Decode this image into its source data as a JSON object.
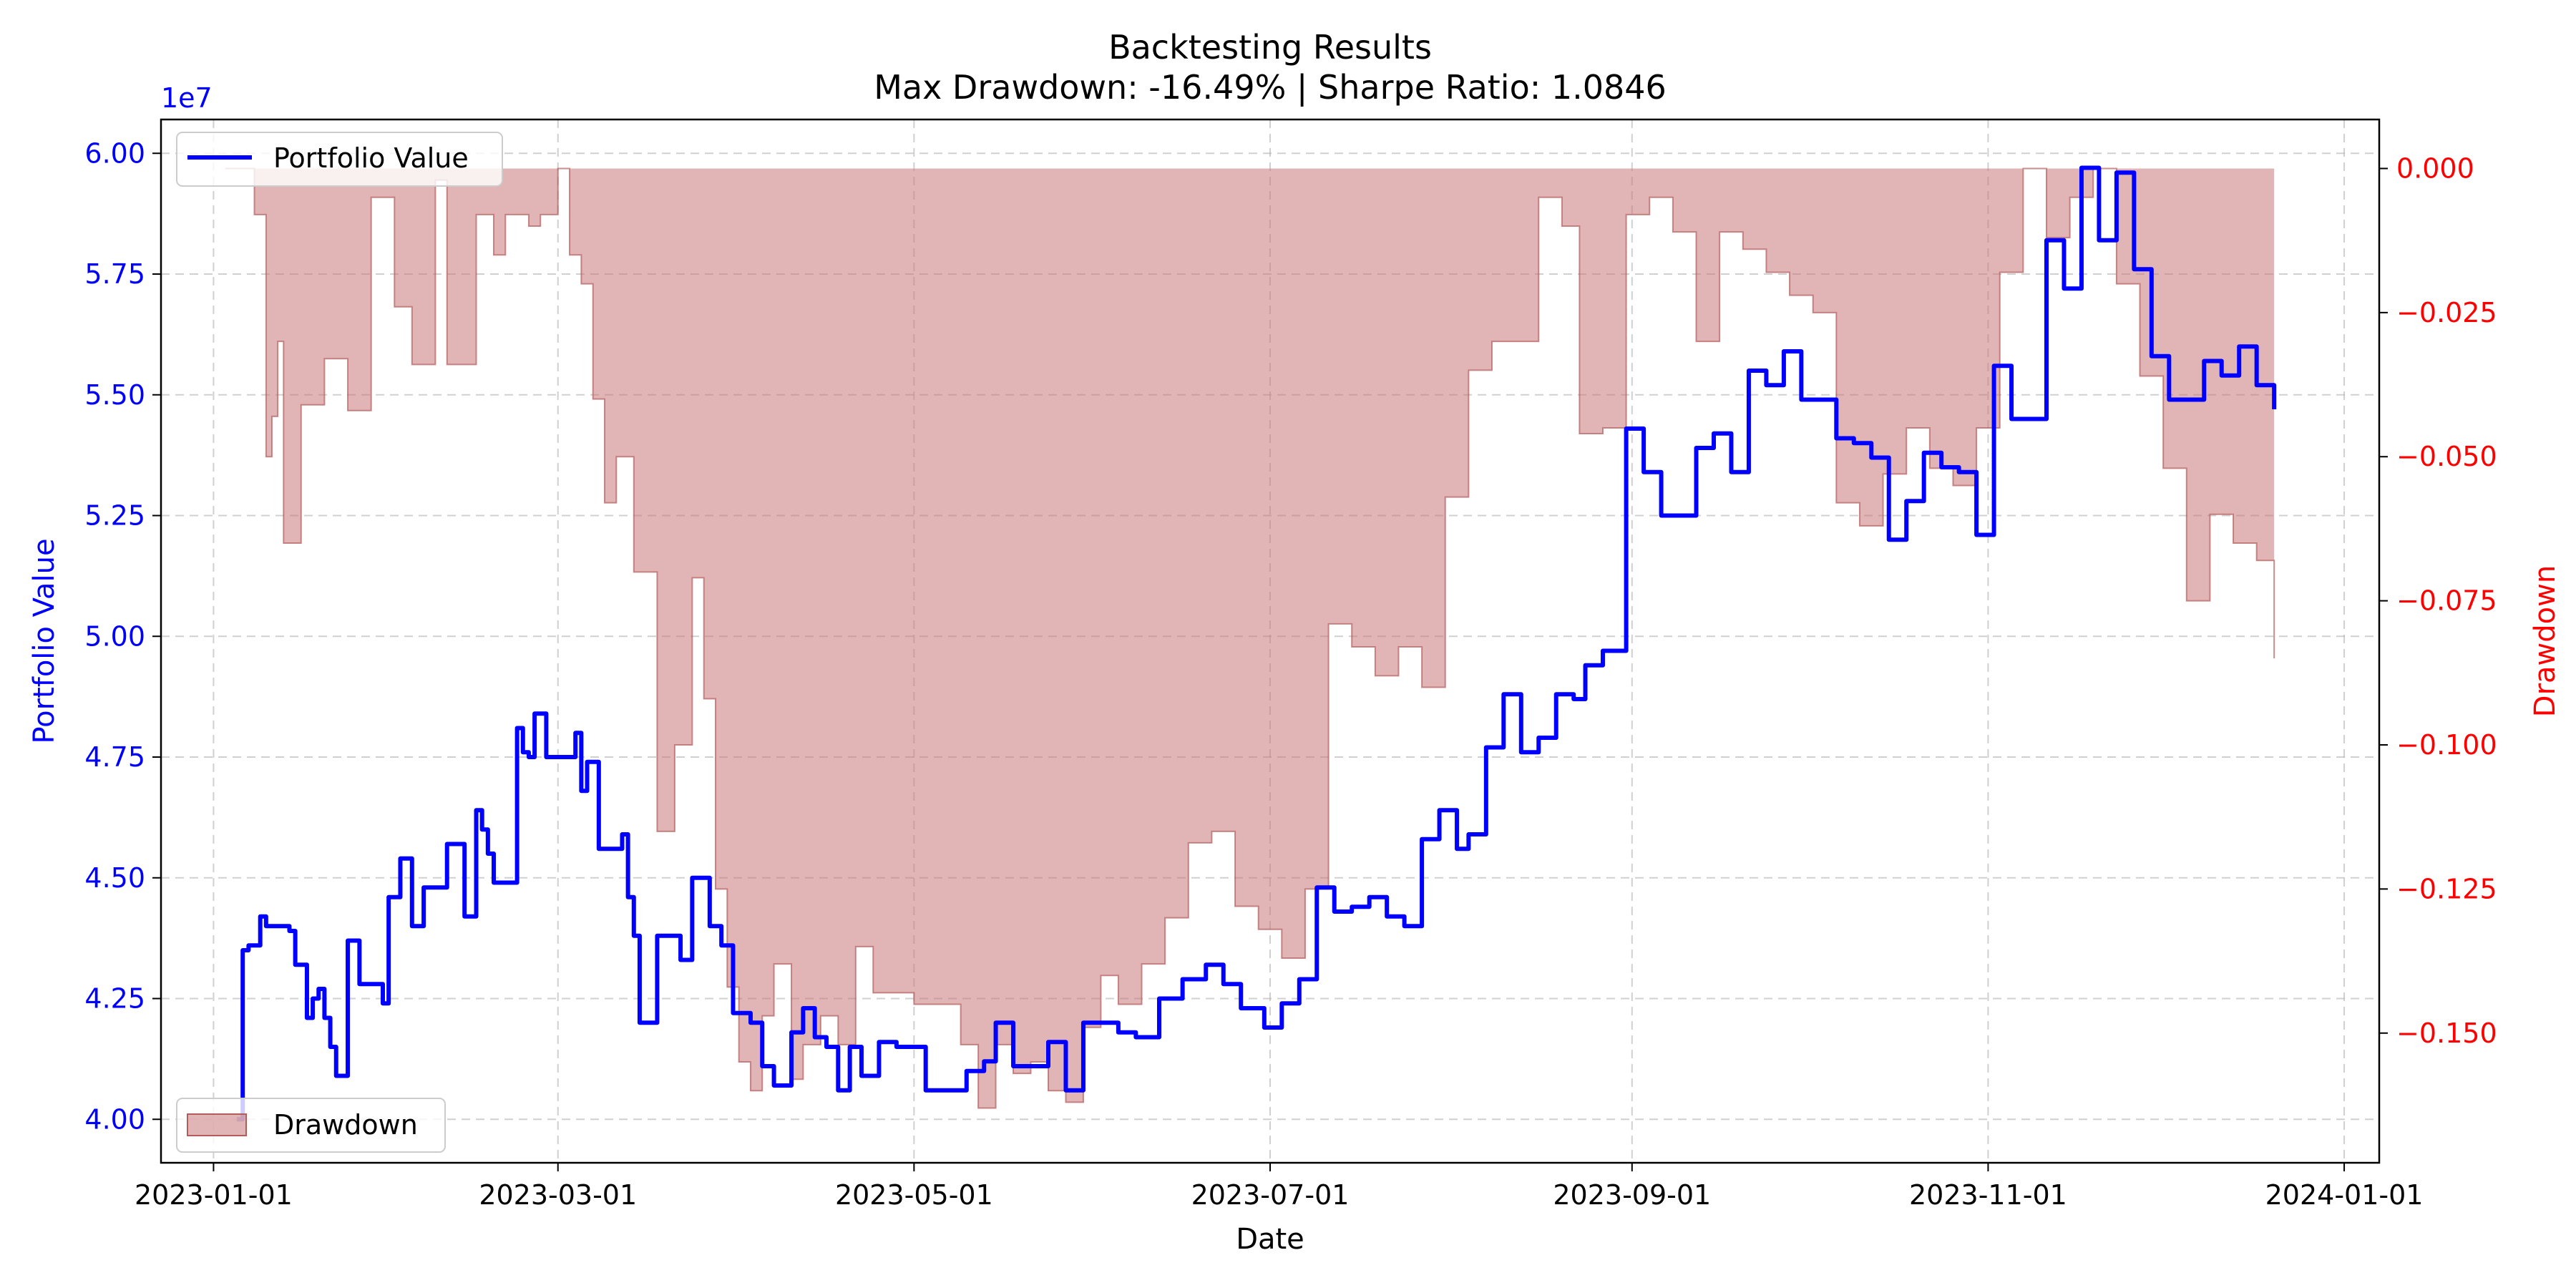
{
  "chart_data": {
    "type": "line",
    "title": "Backtesting Results",
    "subtitle": "Max Drawdown: -16.49% | Sharpe Ratio: 1.0846",
    "xlabel": "Date",
    "ylabel_left": "Portfolio Value",
    "ylabel_right": "Drawdown",
    "left_axis_multiplier": "1e7",
    "x_ticks": [
      "2023-01-01",
      "2023-03-01",
      "2023-05-01",
      "2023-07-01",
      "2023-09-01",
      "2023-11-01",
      "2024-01-01"
    ],
    "y_left_ticks": [
      "4.00",
      "4.25",
      "4.50",
      "4.75",
      "5.00",
      "5.25",
      "5.50",
      "5.75",
      "6.00"
    ],
    "y_right_ticks": [
      "0.000",
      "−0.025",
      "−0.050",
      "−0.075",
      "−0.100",
      "−0.125",
      "−0.150"
    ],
    "xlim": [
      "2022-12-23",
      "2024-01-07"
    ],
    "ylim_left": [
      39100000,
      60700000
    ],
    "ylim_right": [
      -0.1725,
      0.0085
    ],
    "grid": true,
    "colors": {
      "portfolio": "#0000ff",
      "drawdown_fill": "#c87878",
      "drawdown_edge": "#b35c5c",
      "right_axis": "#ff0000",
      "left_axis": "#0000ff"
    },
    "legends": [
      {
        "placement": "upper-left",
        "label": "Portfolio Value"
      },
      {
        "placement": "lower-left",
        "label": "Drawdown"
      }
    ],
    "series": [
      {
        "name": "Portfolio Value",
        "axis": "left",
        "x": [
          "2023-01-05",
          "2023-01-06",
          "2023-01-07",
          "2023-01-09",
          "2023-01-10",
          "2023-01-14",
          "2023-01-15",
          "2023-01-17",
          "2023-01-18",
          "2023-01-19",
          "2023-01-20",
          "2023-01-21",
          "2023-01-22",
          "2023-01-24",
          "2023-01-26",
          "2023-01-27",
          "2023-01-28",
          "2023-01-30",
          "2023-01-31",
          "2023-02-02",
          "2023-02-04",
          "2023-02-05",
          "2023-02-06",
          "2023-02-10",
          "2023-02-13",
          "2023-02-14",
          "2023-02-15",
          "2023-02-16",
          "2023-02-17",
          "2023-02-18",
          "2023-02-19",
          "2023-02-22",
          "2023-02-23",
          "2023-02-24",
          "2023-02-25",
          "2023-02-27",
          "2023-03-01",
          "2023-03-04",
          "2023-03-05",
          "2023-03-06",
          "2023-03-08",
          "2023-03-12",
          "2023-03-13",
          "2023-03-14",
          "2023-03-15",
          "2023-03-18",
          "2023-03-22",
          "2023-03-24",
          "2023-03-25",
          "2023-03-27",
          "2023-03-29",
          "2023-03-31",
          "2023-04-02",
          "2023-04-03",
          "2023-04-05",
          "2023-04-07",
          "2023-04-10",
          "2023-04-12",
          "2023-04-14",
          "2023-04-16",
          "2023-04-18",
          "2023-04-20",
          "2023-04-22",
          "2023-04-25",
          "2023-04-28",
          "2023-04-30",
          "2023-05-03",
          "2023-05-06",
          "2023-05-10",
          "2023-05-13",
          "2023-05-15",
          "2023-05-18",
          "2023-05-21",
          "2023-05-24",
          "2023-05-27",
          "2023-05-30",
          "2023-06-02",
          "2023-06-05",
          "2023-06-08",
          "2023-06-12",
          "2023-06-16",
          "2023-06-20",
          "2023-06-23",
          "2023-06-26",
          "2023-06-30",
          "2023-07-03",
          "2023-07-06",
          "2023-07-09",
          "2023-07-12",
          "2023-07-15",
          "2023-07-18",
          "2023-07-21",
          "2023-07-24",
          "2023-07-27",
          "2023-07-30",
          "2023-08-02",
          "2023-08-04",
          "2023-08-07",
          "2023-08-10",
          "2023-08-13",
          "2023-08-16",
          "2023-08-19",
          "2023-08-22",
          "2023-08-24",
          "2023-08-27",
          "2023-08-31",
          "2023-09-03",
          "2023-09-06",
          "2023-09-09",
          "2023-09-12",
          "2023-09-15",
          "2023-09-18",
          "2023-09-21",
          "2023-09-24",
          "2023-09-27",
          "2023-09-30",
          "2023-10-03",
          "2023-10-06",
          "2023-10-09",
          "2023-10-12",
          "2023-10-15",
          "2023-10-18",
          "2023-10-21",
          "2023-10-24",
          "2023-10-27",
          "2023-10-30",
          "2023-11-02",
          "2023-11-05",
          "2023-11-08",
          "2023-11-11",
          "2023-11-14",
          "2023-11-17",
          "2023-11-20",
          "2023-11-23",
          "2023-11-26",
          "2023-11-29",
          "2023-12-02",
          "2023-12-05",
          "2023-12-08",
          "2023-12-11",
          "2023-12-14",
          "2023-12-17",
          "2023-12-20"
        ],
        "values": [
          40000000,
          43500000,
          43600000,
          44200000,
          44000000,
          43900000,
          43200000,
          42100000,
          42500000,
          42700000,
          42100000,
          41500000,
          40900000,
          43700000,
          42800000,
          42800000,
          42800000,
          42400000,
          44600000,
          45400000,
          44000000,
          44000000,
          44800000,
          45700000,
          44200000,
          44200000,
          46400000,
          46000000,
          45500000,
          44900000,
          44900000,
          48100000,
          47600000,
          47500000,
          48400000,
          47500000,
          47500000,
          48000000,
          46800000,
          47400000,
          45600000,
          45900000,
          44600000,
          43800000,
          42000000,
          43800000,
          43300000,
          45000000,
          45000000,
          44000000,
          43600000,
          42200000,
          42200000,
          42000000,
          41100000,
          40700000,
          41800000,
          42300000,
          41700000,
          41500000,
          40600000,
          41500000,
          40900000,
          41600000,
          41500000,
          41500000,
          40600000,
          40600000,
          41000000,
          41200000,
          42000000,
          41100000,
          41100000,
          41600000,
          40600000,
          42000000,
          42000000,
          41800000,
          41700000,
          42500000,
          42900000,
          43200000,
          42800000,
          42300000,
          41900000,
          42400000,
          42900000,
          44800000,
          44300000,
          44400000,
          44600000,
          44200000,
          44000000,
          45800000,
          46400000,
          45600000,
          45900000,
          47700000,
          48800000,
          47600000,
          47900000,
          48800000,
          48700000,
          49400000,
          49700000,
          54300000,
          53400000,
          52500000,
          52500000,
          53900000,
          54200000,
          53400000,
          55500000,
          55200000,
          55900000,
          54900000,
          54900000,
          54100000,
          54000000,
          53700000,
          52000000,
          52800000,
          53800000,
          53500000,
          53400000,
          52100000,
          55600000,
          54500000,
          54500000,
          58200000,
          57200000,
          59700000,
          58200000,
          59600000,
          57600000,
          55800000,
          54900000,
          54900000,
          55700000,
          55400000,
          56000000,
          55200000,
          54700000
        ]
      },
      {
        "name": "Drawdown",
        "axis": "right",
        "x": [
          "2023-01-03",
          "2023-01-08",
          "2023-01-10",
          "2023-01-11",
          "2023-01-12",
          "2023-01-13",
          "2023-01-16",
          "2023-01-20",
          "2023-01-21",
          "2023-01-24",
          "2023-01-28",
          "2023-02-01",
          "2023-02-04",
          "2023-02-06",
          "2023-02-08",
          "2023-02-10",
          "2023-02-11",
          "2023-02-15",
          "2023-02-18",
          "2023-02-20",
          "2023-02-24",
          "2023-02-26",
          "2023-03-01",
          "2023-03-03",
          "2023-03-05",
          "2023-03-07",
          "2023-03-09",
          "2023-03-11",
          "2023-03-14",
          "2023-03-18",
          "2023-03-21",
          "2023-03-24",
          "2023-03-26",
          "2023-03-28",
          "2023-03-30",
          "2023-04-01",
          "2023-04-03",
          "2023-04-05",
          "2023-04-07",
          "2023-04-10",
          "2023-04-12",
          "2023-04-15",
          "2023-04-18",
          "2023-04-21",
          "2023-04-24",
          "2023-04-27",
          "2023-05-01",
          "2023-05-05",
          "2023-05-09",
          "2023-05-12",
          "2023-05-15",
          "2023-05-18",
          "2023-05-21",
          "2023-05-24",
          "2023-05-27",
          "2023-05-30",
          "2023-06-02",
          "2023-06-05",
          "2023-06-09",
          "2023-06-13",
          "2023-06-17",
          "2023-06-21",
          "2023-06-25",
          "2023-06-29",
          "2023-07-03",
          "2023-07-07",
          "2023-07-11",
          "2023-07-15",
          "2023-07-19",
          "2023-07-23",
          "2023-07-27",
          "2023-07-31",
          "2023-08-04",
          "2023-08-08",
          "2023-08-12",
          "2023-08-16",
          "2023-08-20",
          "2023-08-23",
          "2023-08-27",
          "2023-08-31",
          "2023-09-04",
          "2023-09-08",
          "2023-09-12",
          "2023-09-16",
          "2023-09-20",
          "2023-09-24",
          "2023-09-28",
          "2023-10-02",
          "2023-10-06",
          "2023-10-10",
          "2023-10-14",
          "2023-10-18",
          "2023-10-22",
          "2023-10-26",
          "2023-10-30",
          "2023-11-03",
          "2023-11-07",
          "2023-11-11",
          "2023-11-15",
          "2023-11-19",
          "2023-11-23",
          "2023-11-27",
          "2023-12-01",
          "2023-12-05",
          "2023-12-09",
          "2023-12-13",
          "2023-12-17",
          "2023-12-20"
        ],
        "values": [
          0.0,
          -0.008,
          -0.05,
          -0.043,
          -0.03,
          -0.065,
          -0.041,
          -0.033,
          -0.033,
          -0.042,
          -0.005,
          -0.024,
          -0.034,
          -0.034,
          -0.002,
          -0.034,
          -0.034,
          -0.008,
          -0.015,
          -0.008,
          -0.01,
          -0.008,
          -0.0,
          -0.015,
          -0.02,
          -0.04,
          -0.058,
          -0.05,
          -0.07,
          -0.115,
          -0.1,
          -0.071,
          -0.092,
          -0.125,
          -0.142,
          -0.155,
          -0.16,
          -0.147,
          -0.138,
          -0.158,
          -0.152,
          -0.147,
          -0.152,
          -0.135,
          -0.143,
          -0.143,
          -0.145,
          -0.145,
          -0.152,
          -0.163,
          -0.152,
          -0.157,
          -0.155,
          -0.16,
          -0.162,
          -0.149,
          -0.14,
          -0.145,
          -0.138,
          -0.13,
          -0.117,
          -0.115,
          -0.128,
          -0.132,
          -0.137,
          -0.125,
          -0.079,
          -0.083,
          -0.088,
          -0.083,
          -0.09,
          -0.057,
          -0.035,
          -0.03,
          -0.03,
          -0.005,
          -0.01,
          -0.046,
          -0.045,
          -0.008,
          -0.005,
          -0.011,
          -0.03,
          -0.011,
          -0.014,
          -0.018,
          -0.022,
          -0.025,
          -0.058,
          -0.062,
          -0.053,
          -0.045,
          -0.052,
          -0.055,
          -0.045,
          -0.018,
          0.0,
          -0.012,
          -0.005,
          0.0,
          -0.02,
          -0.036,
          -0.052,
          -0.075,
          -0.06,
          -0.065,
          -0.068,
          -0.085
        ]
      }
    ]
  }
}
